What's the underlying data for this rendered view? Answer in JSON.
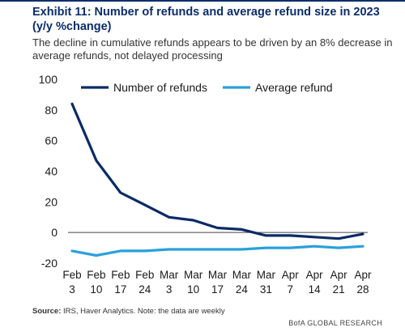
{
  "header": {
    "title": "Exhibit 11: Number of refunds and average refund size in 2023 (y/y %change)",
    "subtitle": "The decline in cumulative refunds appears to be driven by an 8% decrease in average refunds, not delayed processing"
  },
  "footer": {
    "source_label": "Source:",
    "source_text": "IRS, Haver Analytics. Note: the data are weekly",
    "brand": "BofA GLOBAL RESEARCH"
  },
  "chart_data": {
    "type": "line",
    "title": "Exhibit 11: Number of refunds and average refund size in 2023 (y/y %change)",
    "xlabel": "",
    "ylabel": "",
    "categories": [
      [
        "Feb",
        "3"
      ],
      [
        "Feb",
        "10"
      ],
      [
        "Feb",
        "17"
      ],
      [
        "Feb",
        "24"
      ],
      [
        "Mar",
        "3"
      ],
      [
        "Mar",
        "10"
      ],
      [
        "Mar",
        "17"
      ],
      [
        "Mar",
        "24"
      ],
      [
        "Mar",
        "31"
      ],
      [
        "Apr",
        "7"
      ],
      [
        "Apr",
        "14"
      ],
      [
        "Apr",
        "21"
      ],
      [
        "Apr",
        "28"
      ]
    ],
    "ylim": [
      -20,
      100
    ],
    "yticks": [
      -20,
      0,
      20,
      40,
      60,
      80,
      100
    ],
    "grid": false,
    "legend_position": "top",
    "series": [
      {
        "name": "Number of refunds",
        "color": "#0b2a66",
        "values": [
          84,
          47,
          26,
          18,
          10,
          8,
          3,
          2,
          -2,
          -2,
          -3,
          -4,
          -1
        ]
      },
      {
        "name": "Average refund",
        "color": "#2aa0dc",
        "values": [
          -12,
          -15,
          -12,
          -12,
          -11,
          -11,
          -11,
          -11,
          -10,
          -10,
          -9,
          -10,
          -9
        ]
      }
    ]
  }
}
